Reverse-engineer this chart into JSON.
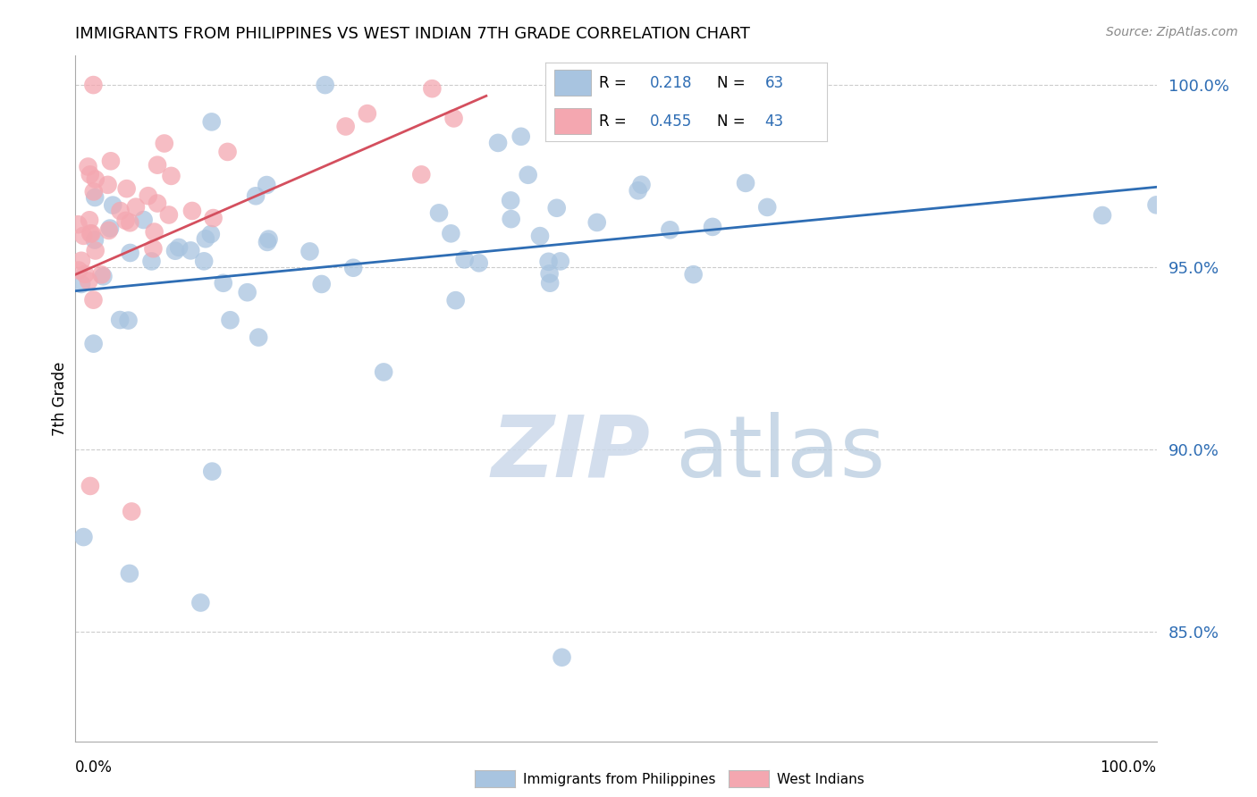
{
  "title": "IMMIGRANTS FROM PHILIPPINES VS WEST INDIAN 7TH GRADE CORRELATION CHART",
  "source": "Source: ZipAtlas.com",
  "ylabel": "7th Grade",
  "xlim": [
    0.0,
    1.0
  ],
  "ylim": [
    0.82,
    1.008
  ],
  "yticks": [
    0.85,
    0.9,
    0.95,
    1.0
  ],
  "ytick_labels": [
    "85.0%",
    "90.0%",
    "95.0%",
    "100.0%"
  ],
  "blue_R": 0.218,
  "blue_N": 63,
  "pink_R": 0.455,
  "pink_N": 43,
  "blue_color": "#a8c4e0",
  "blue_line_color": "#2e6db4",
  "pink_color": "#f4a7b0",
  "pink_line_color": "#d44f5e",
  "legend_label_blue": "Immigrants from Philippines",
  "legend_label_pink": "West Indians",
  "blue_trendline_x": [
    0.0,
    1.0
  ],
  "blue_trendline_y": [
    0.9435,
    0.972
  ],
  "pink_trendline_x": [
    0.0,
    0.38
  ],
  "pink_trendline_y": [
    0.948,
    0.997
  ]
}
